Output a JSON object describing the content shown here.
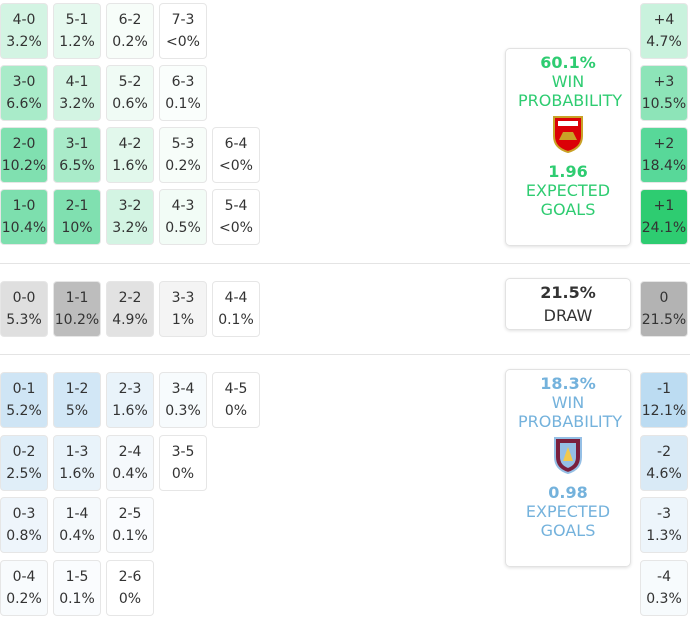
{
  "home": {
    "rows": [
      [
        {
          "score": "4-0",
          "pct": "3.2%",
          "color": "#d3f4e3"
        },
        {
          "score": "5-1",
          "pct": "1.2%",
          "color": "#e6f9ef"
        },
        {
          "score": "6-2",
          "pct": "0.2%",
          "color": "#f7fdf9"
        },
        {
          "score": "7-3",
          "pct": "<0%",
          "color": "#ffffff"
        }
      ],
      [
        {
          "score": "3-0",
          "pct": "6.6%",
          "color": "#a9ebc9"
        },
        {
          "score": "4-1",
          "pct": "3.2%",
          "color": "#d3f4e3"
        },
        {
          "score": "5-2",
          "pct": "0.6%",
          "color": "#f0fbf5"
        },
        {
          "score": "6-3",
          "pct": "0.1%",
          "color": "#fafefc"
        }
      ],
      [
        {
          "score": "2-0",
          "pct": "10.2%",
          "color": "#80e0b0"
        },
        {
          "score": "3-1",
          "pct": "6.5%",
          "color": "#a9ebc9"
        },
        {
          "score": "4-2",
          "pct": "1.6%",
          "color": "#e2f8ec"
        },
        {
          "score": "5-3",
          "pct": "0.2%",
          "color": "#f7fdf9"
        },
        {
          "score": "6-4",
          "pct": "<0%",
          "color": "#ffffff"
        }
      ],
      [
        {
          "score": "1-0",
          "pct": "10.4%",
          "color": "#7ddfae"
        },
        {
          "score": "2-1",
          "pct": "10%",
          "color": "#80e0b0"
        },
        {
          "score": "3-2",
          "pct": "3.2%",
          "color": "#d3f4e3"
        },
        {
          "score": "4-3",
          "pct": "0.5%",
          "color": "#f2fcf6"
        },
        {
          "score": "5-4",
          "pct": "<0%",
          "color": "#ffffff"
        }
      ]
    ],
    "margins": [
      {
        "label": "+4",
        "pct": "4.7%",
        "color": "#c9f2dd"
      },
      {
        "label": "+3",
        "pct": "10.5%",
        "color": "#8de4b8"
      },
      {
        "label": "+2",
        "pct": "18.4%",
        "color": "#58d899"
      },
      {
        "label": "+1",
        "pct": "24.1%",
        "color": "#2ecc71"
      }
    ],
    "panel": {
      "win_pct": "60.1%",
      "win_label": "WIN PROBABILITY",
      "xg": "1.96",
      "xg_label": "EXPECTED GOALS",
      "color": "#2ecc71"
    }
  },
  "draw": {
    "rows": [
      [
        {
          "score": "0-0",
          "pct": "5.3%",
          "color": "#dfdfdf"
        },
        {
          "score": "1-1",
          "pct": "10.2%",
          "color": "#bdbdbd"
        },
        {
          "score": "2-2",
          "pct": "4.9%",
          "color": "#e2e2e2"
        },
        {
          "score": "3-3",
          "pct": "1%",
          "color": "#f4f4f4"
        },
        {
          "score": "4-4",
          "pct": "0.1%",
          "color": "#ffffff"
        }
      ]
    ],
    "margins": [
      {
        "label": "0",
        "pct": "21.5%",
        "color": "#b3b3b3"
      }
    ],
    "panel": {
      "pct": "21.5%",
      "label": "DRAW"
    }
  },
  "away": {
    "rows": [
      [
        {
          "score": "0-1",
          "pct": "5.2%",
          "color": "#cfe5f5"
        },
        {
          "score": "1-2",
          "pct": "5%",
          "color": "#d2e7f6"
        },
        {
          "score": "2-3",
          "pct": "1.6%",
          "color": "#e9f3fa"
        },
        {
          "score": "3-4",
          "pct": "0.3%",
          "color": "#f7fbfd"
        },
        {
          "score": "4-5",
          "pct": "0%",
          "color": "#ffffff"
        }
      ],
      [
        {
          "score": "0-2",
          "pct": "2.5%",
          "color": "#e0eef8"
        },
        {
          "score": "1-3",
          "pct": "1.6%",
          "color": "#e9f3fa"
        },
        {
          "score": "2-4",
          "pct": "0.4%",
          "color": "#f5f9fc"
        },
        {
          "score": "3-5",
          "pct": "0%",
          "color": "#ffffff"
        }
      ],
      [
        {
          "score": "0-3",
          "pct": "0.8%",
          "color": "#eef5fb"
        },
        {
          "score": "1-4",
          "pct": "0.4%",
          "color": "#f5f9fc"
        },
        {
          "score": "2-5",
          "pct": "0.1%",
          "color": "#fafcfe"
        }
      ],
      [
        {
          "score": "0-4",
          "pct": "0.2%",
          "color": "#f8fbfd"
        },
        {
          "score": "1-5",
          "pct": "0.1%",
          "color": "#fafcfe"
        },
        {
          "score": "2-6",
          "pct": "0%",
          "color": "#ffffff"
        }
      ]
    ],
    "margins": [
      {
        "label": "-1",
        "pct": "12.1%",
        "color": "#bcdcf2"
      },
      {
        "label": "-2",
        "pct": "4.6%",
        "color": "#d9eaf6"
      },
      {
        "label": "-3",
        "pct": "1.3%",
        "color": "#edf5fb"
      },
      {
        "label": "-4",
        "pct": "0.3%",
        "color": "#f7fbfd"
      }
    ],
    "panel": {
      "win_pct": "18.3%",
      "win_label": "WIN PROBABILITY",
      "xg": "0.98",
      "xg_label": "EXPECTED GOALS",
      "color": "#74b2dc"
    }
  }
}
